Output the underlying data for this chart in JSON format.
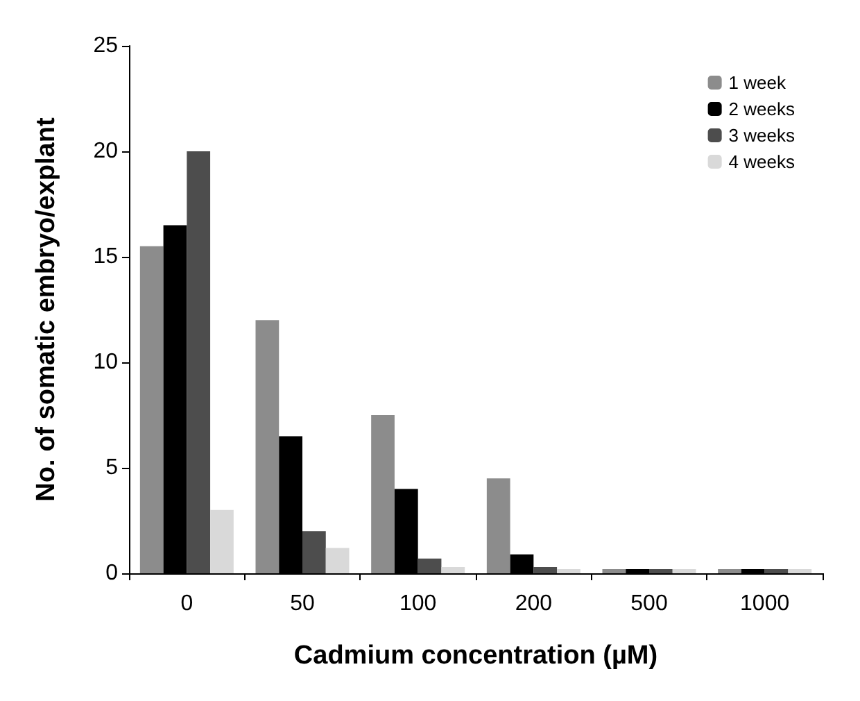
{
  "chart_data": {
    "type": "bar",
    "xlabel": "Cadmium concentration (µM)",
    "ylabel": "No. of somatic embryo/explant",
    "categories": [
      "0",
      "50",
      "100",
      "200",
      "500",
      "1000"
    ],
    "series": [
      {
        "name": "1 week",
        "color": "#8c8c8c",
        "values": [
          15.5,
          12,
          7.5,
          4.5,
          0.2,
          0.2
        ]
      },
      {
        "name": "2 weeks",
        "color": "#000000",
        "values": [
          16.5,
          6.5,
          4,
          0.9,
          0.2,
          0.2
        ]
      },
      {
        "name": "3 weeks",
        "color": "#4d4d4d",
        "values": [
          20,
          2,
          0.7,
          0.3,
          0.2,
          0.2
        ]
      },
      {
        "name": "4 weeks",
        "color": "#d9d9d9",
        "values": [
          3,
          1.2,
          0.3,
          0.2,
          0.2,
          0.2
        ]
      }
    ],
    "ylim": [
      0,
      25
    ],
    "yticks": [
      0,
      5,
      10,
      15,
      20,
      25
    ],
    "grid": false,
    "legend": "top right"
  }
}
